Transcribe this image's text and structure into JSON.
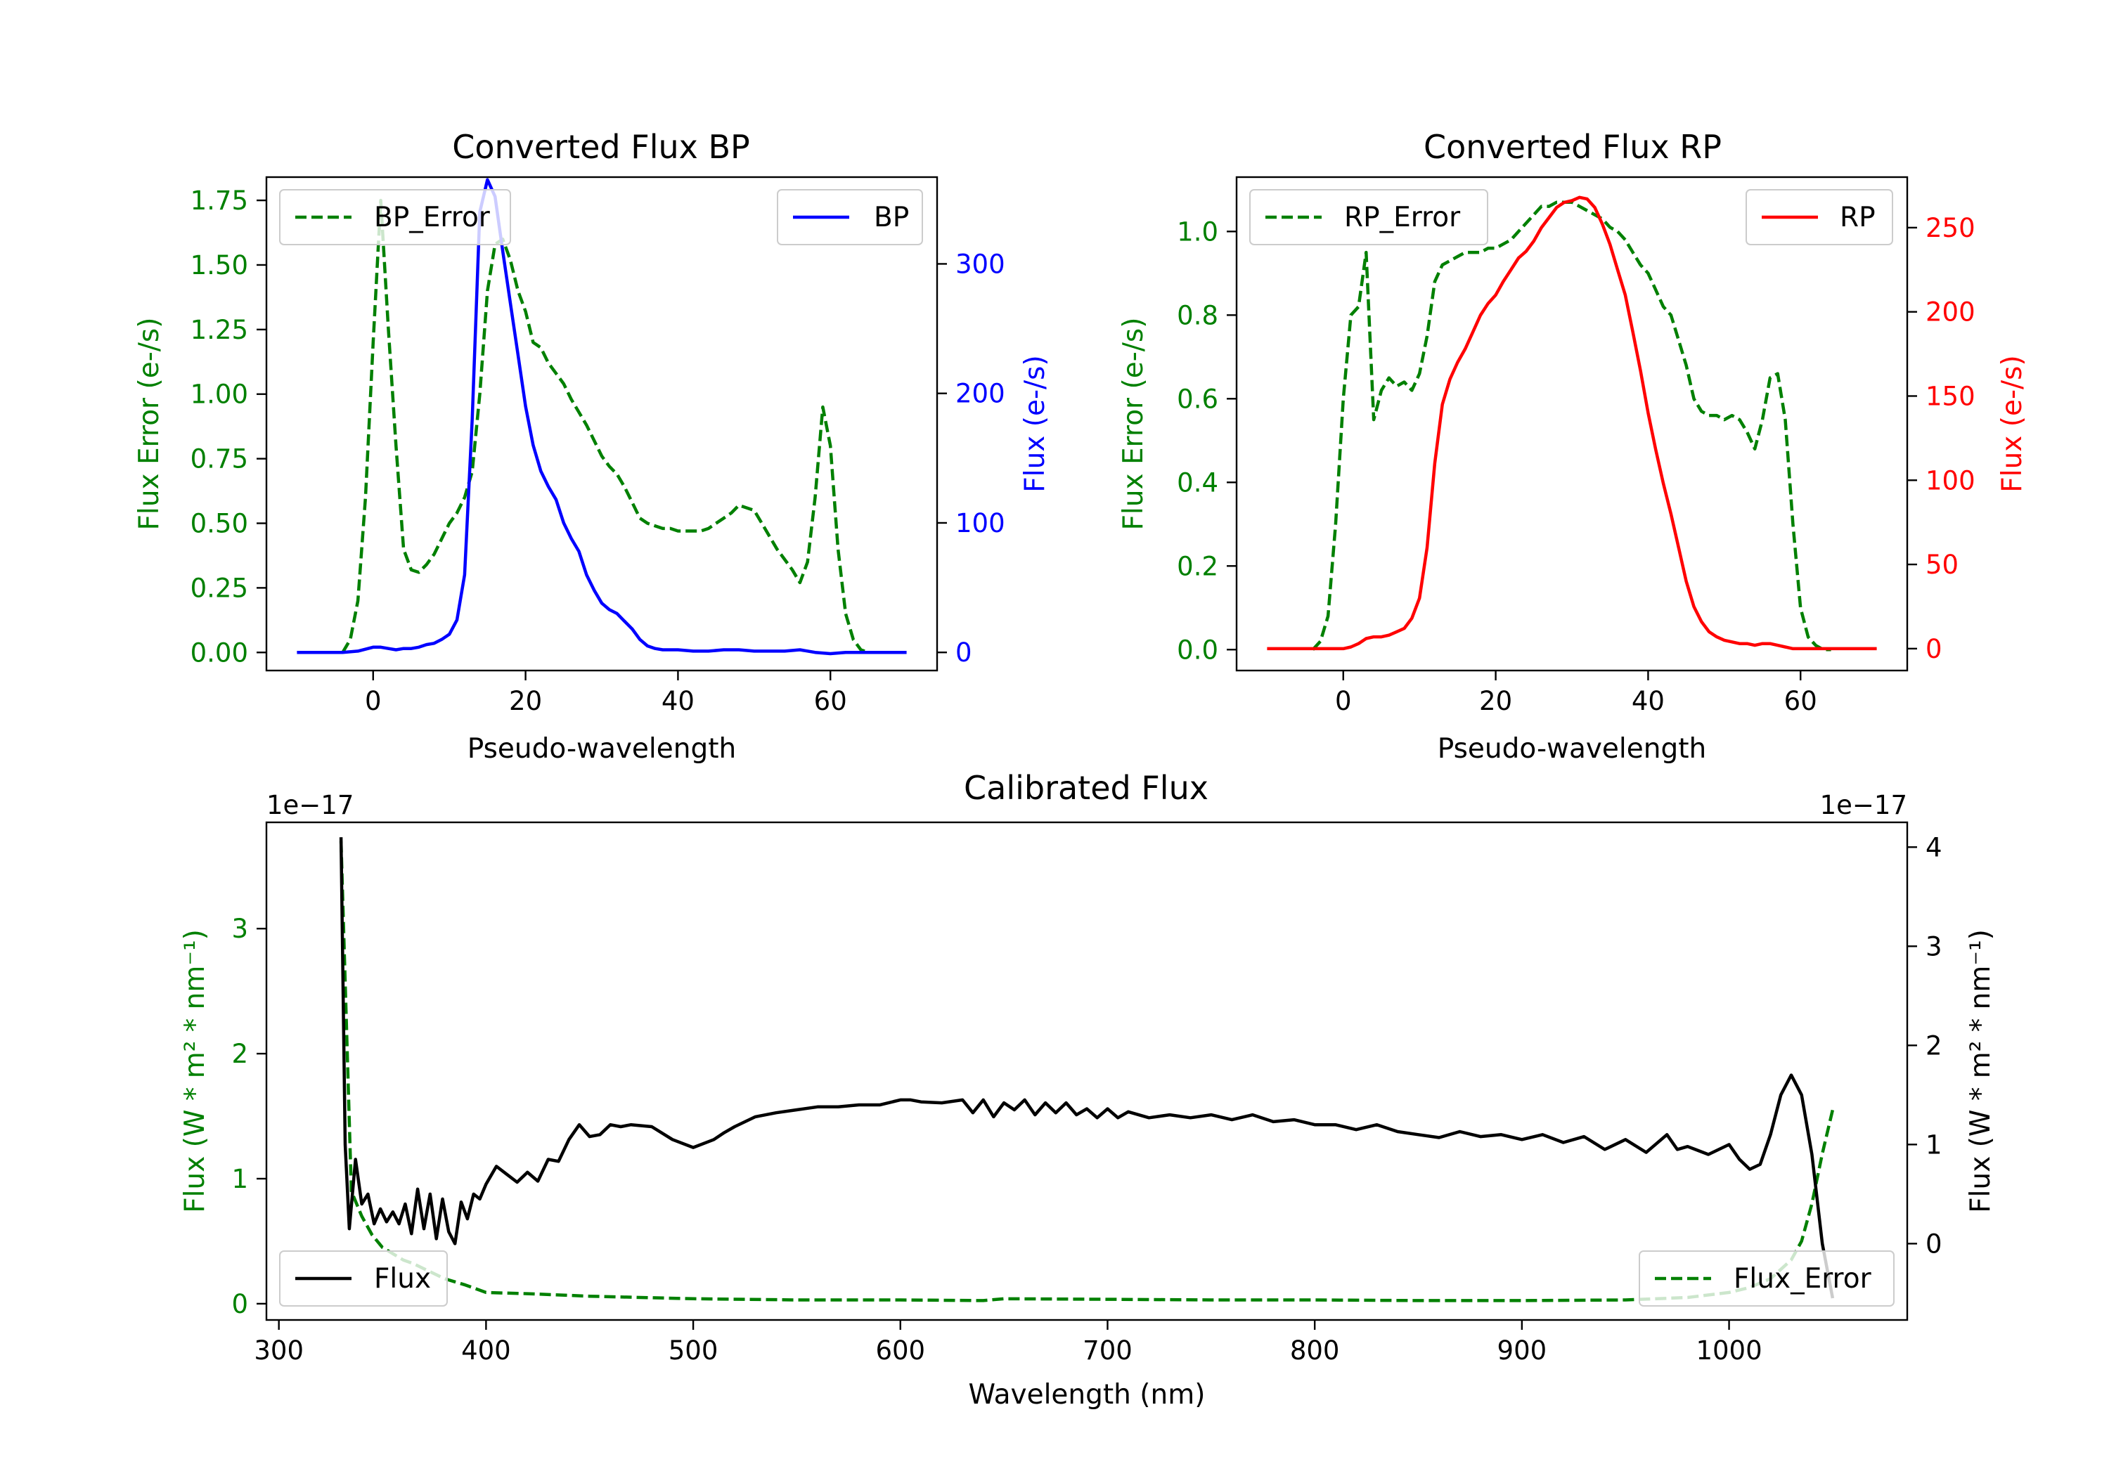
{
  "colors": {
    "green": "#008000",
    "blue": "#0000ff",
    "red": "#ff0000",
    "black": "#000000"
  },
  "chart_data": [
    {
      "id": "bp",
      "type": "line",
      "title": "Converted Flux BP",
      "xlabel": "Pseudo-wavelength",
      "ylabel_left": "Flux Error (e-/s)",
      "ylabel_right": "Flux (e-/s)",
      "xlim": [
        -14,
        74
      ],
      "xticks": [
        0,
        20,
        40,
        60
      ],
      "left_axis": {
        "ylim": [
          -0.07,
          1.84
        ],
        "ticks": [
          "0.00",
          "0.25",
          "0.50",
          "0.75",
          "1.00",
          "1.25",
          "1.50",
          "1.75"
        ],
        "color": "#008000"
      },
      "right_axis": {
        "ylim": [
          -14,
          367
        ],
        "ticks": [
          "0",
          "100",
          "200",
          "300"
        ],
        "color": "#0000ff"
      },
      "series": [
        {
          "name": "BP_Error",
          "axis": "left",
          "style": "dashed",
          "color": "#008000",
          "x": [
            -4,
            -3,
            -2,
            -1,
            0,
            1,
            2,
            3,
            4,
            5,
            6,
            7,
            8,
            9,
            10,
            11,
            12,
            13,
            14,
            15,
            16,
            17,
            18,
            19,
            20,
            21,
            22,
            23,
            24,
            25,
            26,
            27,
            28,
            29,
            30,
            31,
            32,
            33,
            34,
            35,
            36,
            37,
            38,
            39,
            40,
            41,
            42,
            43,
            44,
            45,
            46,
            47,
            48,
            49,
            50,
            51,
            52,
            53,
            54,
            55,
            56,
            57,
            58,
            59,
            60,
            61,
            62,
            63,
            64,
            65,
            66
          ],
          "y": [
            0.0,
            0.05,
            0.2,
            0.6,
            1.2,
            1.75,
            1.25,
            0.8,
            0.4,
            0.32,
            0.31,
            0.34,
            0.38,
            0.44,
            0.5,
            0.54,
            0.6,
            0.7,
            1.0,
            1.4,
            1.58,
            1.6,
            1.52,
            1.4,
            1.32,
            1.2,
            1.18,
            1.12,
            1.08,
            1.04,
            0.98,
            0.93,
            0.88,
            0.82,
            0.76,
            0.72,
            0.69,
            0.64,
            0.58,
            0.52,
            0.5,
            0.49,
            0.48,
            0.48,
            0.47,
            0.47,
            0.47,
            0.47,
            0.48,
            0.5,
            0.52,
            0.54,
            0.57,
            0.56,
            0.55,
            0.5,
            0.45,
            0.4,
            0.36,
            0.32,
            0.27,
            0.35,
            0.6,
            0.95,
            0.8,
            0.4,
            0.15,
            0.05,
            0.01,
            0.0,
            0.0
          ]
        },
        {
          "name": "BP",
          "axis": "right",
          "style": "solid",
          "color": "#0000ff",
          "x": [
            -10,
            -8,
            -6,
            -4,
            -2,
            0,
            1,
            2,
            3,
            4,
            5,
            6,
            7,
            8,
            9,
            10,
            11,
            12,
            13,
            14,
            15,
            16,
            17,
            18,
            19,
            20,
            21,
            22,
            23,
            24,
            25,
            26,
            27,
            28,
            29,
            30,
            31,
            32,
            33,
            34,
            35,
            36,
            37,
            38,
            40,
            42,
            44,
            46,
            48,
            50,
            52,
            54,
            56,
            58,
            60,
            62,
            64,
            66,
            68,
            70
          ],
          "y": [
            0,
            0,
            0,
            0,
            1,
            4,
            4,
            3,
            2,
            3,
            3,
            4,
            6,
            7,
            10,
            14,
            25,
            60,
            180,
            340,
            365,
            352,
            310,
            270,
            230,
            190,
            160,
            140,
            128,
            118,
            100,
            88,
            78,
            60,
            48,
            38,
            33,
            30,
            24,
            18,
            10,
            5,
            3,
            2,
            2,
            1,
            1,
            2,
            2,
            1,
            1,
            1,
            2,
            0,
            -1,
            0,
            0,
            0,
            0,
            0
          ]
        }
      ],
      "legends": [
        {
          "label": "BP_Error",
          "series": "BP_Error",
          "loc": "upper left"
        },
        {
          "label": "BP",
          "series": "BP",
          "loc": "upper right"
        }
      ]
    },
    {
      "id": "rp",
      "type": "line",
      "title": "Converted Flux RP",
      "xlabel": "Pseudo-wavelength",
      "ylabel_left": "Flux Error (e-/s)",
      "ylabel_right": "Flux (e-/s)",
      "xlim": [
        -14,
        74
      ],
      "xticks": [
        0,
        20,
        40,
        60
      ],
      "left_axis": {
        "ylim": [
          -0.05,
          1.13
        ],
        "ticks": [
          "0.0",
          "0.2",
          "0.4",
          "0.6",
          "0.8",
          "1.0"
        ],
        "color": "#008000"
      },
      "right_axis": {
        "ylim": [
          -13,
          280
        ],
        "ticks": [
          "0",
          "50",
          "100",
          "150",
          "200",
          "250"
        ],
        "color": "#ff0000"
      },
      "series": [
        {
          "name": "RP_Error",
          "axis": "left",
          "style": "dashed",
          "color": "#008000",
          "x": [
            -4,
            -3,
            -2,
            -1,
            0,
            1,
            2,
            3,
            4,
            5,
            6,
            7,
            8,
            9,
            10,
            11,
            12,
            13,
            14,
            15,
            16,
            17,
            18,
            19,
            20,
            21,
            22,
            23,
            24,
            25,
            26,
            27,
            28,
            29,
            30,
            31,
            32,
            33,
            34,
            35,
            36,
            37,
            38,
            39,
            40,
            41,
            42,
            43,
            44,
            45,
            46,
            47,
            48,
            49,
            50,
            51,
            52,
            53,
            54,
            55,
            56,
            57,
            58,
            59,
            60,
            61,
            62,
            63,
            64
          ],
          "y": [
            0.0,
            0.02,
            0.08,
            0.3,
            0.6,
            0.8,
            0.82,
            0.95,
            0.55,
            0.62,
            0.65,
            0.63,
            0.64,
            0.62,
            0.66,
            0.75,
            0.88,
            0.92,
            0.93,
            0.94,
            0.95,
            0.95,
            0.95,
            0.96,
            0.96,
            0.97,
            0.98,
            1.0,
            1.02,
            1.04,
            1.06,
            1.06,
            1.07,
            1.07,
            1.07,
            1.06,
            1.05,
            1.04,
            1.03,
            1.01,
            1.0,
            0.98,
            0.95,
            0.92,
            0.9,
            0.86,
            0.82,
            0.8,
            0.74,
            0.68,
            0.6,
            0.57,
            0.56,
            0.56,
            0.55,
            0.56,
            0.55,
            0.52,
            0.48,
            0.55,
            0.65,
            0.66,
            0.55,
            0.3,
            0.1,
            0.03,
            0.01,
            0.0,
            0.0
          ]
        },
        {
          "name": "RP",
          "axis": "right",
          "style": "solid",
          "color": "#ff0000",
          "x": [
            -10,
            -8,
            -6,
            -4,
            -2,
            0,
            1,
            2,
            3,
            4,
            5,
            6,
            7,
            8,
            9,
            10,
            11,
            12,
            13,
            14,
            15,
            16,
            17,
            18,
            19,
            20,
            21,
            22,
            23,
            24,
            25,
            26,
            27,
            28,
            29,
            30,
            31,
            32,
            33,
            34,
            35,
            36,
            37,
            38,
            39,
            40,
            41,
            42,
            43,
            44,
            45,
            46,
            47,
            48,
            49,
            50,
            51,
            52,
            53,
            54,
            55,
            56,
            57,
            58,
            59,
            60,
            62,
            64,
            66,
            68,
            70
          ],
          "y": [
            0,
            0,
            0,
            0,
            0,
            0,
            1,
            3,
            6,
            7,
            7,
            8,
            10,
            12,
            18,
            30,
            60,
            110,
            145,
            160,
            170,
            178,
            188,
            198,
            205,
            210,
            218,
            225,
            232,
            236,
            242,
            250,
            256,
            262,
            265,
            266,
            268,
            267,
            262,
            252,
            240,
            225,
            210,
            188,
            165,
            140,
            118,
            98,
            80,
            60,
            40,
            25,
            16,
            10,
            7,
            5,
            4,
            3,
            3,
            2,
            3,
            3,
            2,
            1,
            0,
            0,
            0,
            0,
            0,
            0,
            0
          ]
        }
      ],
      "legends": [
        {
          "label": "RP_Error",
          "series": "RP_Error",
          "loc": "upper left"
        },
        {
          "label": "RP",
          "series": "RP",
          "loc": "upper right"
        }
      ]
    },
    {
      "id": "cal",
      "type": "line",
      "title": "Calibrated Flux",
      "xlabel": "Wavelength (nm)",
      "ylabel_left": "Flux (W * m² * nm⁻¹)",
      "ylabel_right": "Flux (W * m² * nm⁻¹)",
      "offset_left": "1e−17",
      "offset_right": "1e−17",
      "xlim": [
        294,
        1086
      ],
      "xticks": [
        300,
        400,
        500,
        600,
        700,
        800,
        900,
        1000
      ],
      "left_axis": {
        "ylim": [
          -0.13,
          3.85
        ],
        "ticks": [
          "0",
          "1",
          "2",
          "3"
        ],
        "color": "#008000"
      },
      "right_axis": {
        "ylim": [
          -0.77,
          4.25
        ],
        "ticks": [
          "0",
          "1",
          "2",
          "3",
          "4"
        ],
        "color": "#000000"
      },
      "series": [
        {
          "name": "Flux_Error",
          "axis": "left",
          "style": "dashed",
          "color": "#008000",
          "x": [
            330,
            335,
            340,
            345,
            350,
            355,
            360,
            365,
            370,
            380,
            390,
            400,
            420,
            450,
            500,
            550,
            600,
            640,
            650,
            700,
            750,
            800,
            850,
            900,
            950,
            980,
            1000,
            1010,
            1020,
            1030,
            1035,
            1040,
            1045,
            1050
          ],
          "y": [
            3.7,
            0.9,
            0.7,
            0.55,
            0.45,
            0.4,
            0.35,
            0.32,
            0.28,
            0.2,
            0.15,
            0.09,
            0.08,
            0.06,
            0.04,
            0.03,
            0.03,
            0.025,
            0.04,
            0.035,
            0.03,
            0.03,
            0.025,
            0.025,
            0.03,
            0.05,
            0.09,
            0.13,
            0.2,
            0.35,
            0.5,
            0.8,
            1.2,
            1.55
          ]
        },
        {
          "name": "Flux",
          "axis": "right",
          "style": "solid",
          "color": "#000000",
          "x": [
            330,
            332,
            334,
            337,
            340,
            343,
            346,
            349,
            352,
            355,
            358,
            361,
            364,
            367,
            370,
            373,
            376,
            379,
            382,
            385,
            388,
            391,
            394,
            397,
            400,
            405,
            410,
            415,
            420,
            425,
            430,
            435,
            440,
            445,
            450,
            455,
            460,
            465,
            470,
            480,
            490,
            500,
            510,
            515,
            520,
            530,
            540,
            550,
            560,
            570,
            580,
            590,
            600,
            605,
            610,
            620,
            630,
            635,
            640,
            645,
            650,
            655,
            660,
            665,
            670,
            675,
            680,
            685,
            690,
            695,
            700,
            705,
            710,
            720,
            730,
            740,
            750,
            760,
            770,
            780,
            790,
            800,
            810,
            820,
            830,
            840,
            850,
            860,
            870,
            880,
            890,
            900,
            910,
            920,
            930,
            940,
            950,
            960,
            970,
            975,
            980,
            990,
            1000,
            1005,
            1010,
            1015,
            1020,
            1025,
            1030,
            1035,
            1040,
            1045,
            1050
          ],
          "y": [
            4.1,
            1.0,
            0.15,
            0.85,
            0.4,
            0.5,
            0.2,
            0.35,
            0.22,
            0.32,
            0.2,
            0.4,
            0.1,
            0.55,
            0.15,
            0.5,
            0.05,
            0.45,
            0.12,
            0.0,
            0.42,
            0.25,
            0.5,
            0.45,
            0.6,
            0.78,
            0.7,
            0.62,
            0.72,
            0.63,
            0.85,
            0.83,
            1.05,
            1.2,
            1.08,
            1.1,
            1.2,
            1.18,
            1.2,
            1.18,
            1.05,
            0.97,
            1.05,
            1.12,
            1.18,
            1.28,
            1.32,
            1.35,
            1.38,
            1.38,
            1.4,
            1.4,
            1.45,
            1.45,
            1.43,
            1.42,
            1.45,
            1.32,
            1.45,
            1.28,
            1.42,
            1.35,
            1.45,
            1.3,
            1.42,
            1.32,
            1.42,
            1.3,
            1.36,
            1.27,
            1.36,
            1.27,
            1.33,
            1.27,
            1.3,
            1.27,
            1.3,
            1.25,
            1.3,
            1.23,
            1.25,
            1.2,
            1.2,
            1.15,
            1.2,
            1.13,
            1.1,
            1.07,
            1.13,
            1.08,
            1.1,
            1.05,
            1.1,
            1.02,
            1.08,
            0.95,
            1.05,
            0.92,
            1.1,
            0.95,
            0.98,
            0.9,
            1.0,
            0.85,
            0.75,
            0.8,
            1.1,
            1.5,
            1.7,
            1.5,
            0.9,
            0.0,
            -0.55
          ]
        }
      ],
      "legends": [
        {
          "label": "Flux",
          "series": "Flux",
          "loc": "lower left"
        },
        {
          "label": "Flux_Error",
          "series": "Flux_Error",
          "loc": "lower right"
        }
      ]
    }
  ]
}
